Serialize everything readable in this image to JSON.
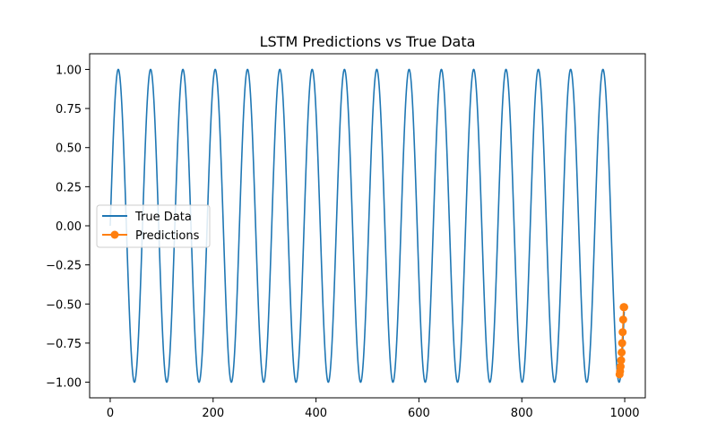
{
  "chart_data": {
    "type": "line",
    "title": "LSTM Predictions vs True Data",
    "xlabel": "",
    "ylabel": "",
    "xlim": [
      -40,
      1040
    ],
    "ylim": [
      -1.1,
      1.1
    ],
    "xticks": [
      0,
      200,
      400,
      600,
      800,
      1000
    ],
    "yticks": [
      -1.0,
      -0.75,
      -0.5,
      -0.25,
      0.0,
      0.25,
      0.5,
      0.75,
      1.0
    ],
    "xtick_labels": [
      "0",
      "200",
      "400",
      "600",
      "800",
      "1000"
    ],
    "ytick_labels": [
      "−1.00",
      "−0.75",
      "−0.50",
      "−0.25",
      "0.00",
      "0.25",
      "0.50",
      "0.75",
      "1.00"
    ],
    "grid": false,
    "legend_position": "center-left",
    "series": [
      {
        "name": "True Data",
        "style": "line",
        "color": "#1f77b4",
        "function": "sin",
        "x_start": 0,
        "x_end": 999,
        "period": 62.8,
        "amplitude": 1.0
      },
      {
        "name": "Predictions",
        "style": "line-marker",
        "color": "#ff7f0e",
        "x": [
          990,
          991,
          992,
          993,
          994,
          995,
          996,
          997,
          998,
          999
        ],
        "y": [
          -0.95,
          -0.93,
          -0.9,
          -0.86,
          -0.81,
          -0.75,
          -0.68,
          -0.6,
          -0.52,
          -0.52
        ]
      }
    ]
  }
}
